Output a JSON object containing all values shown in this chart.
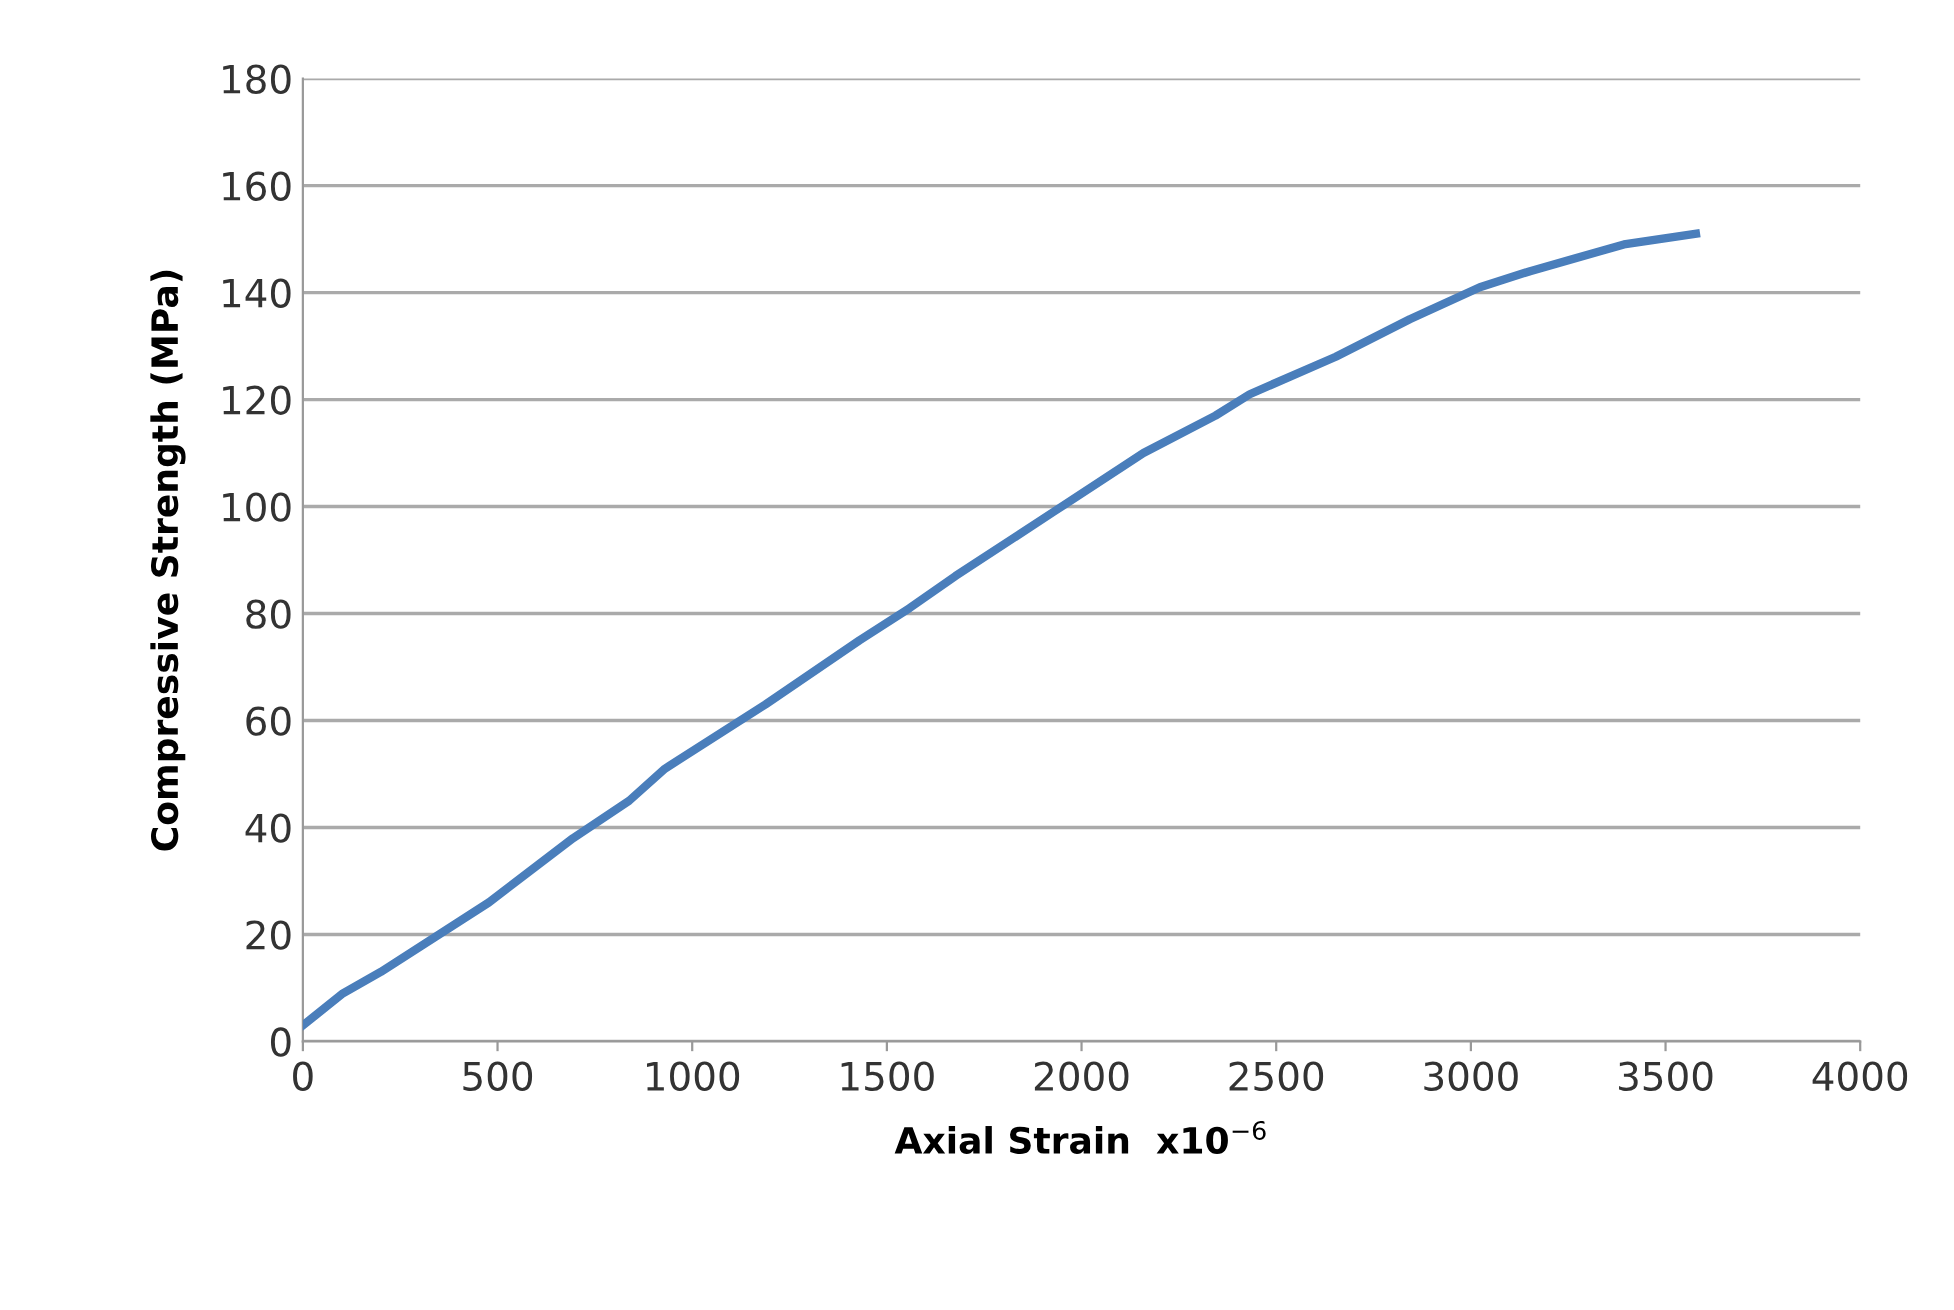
{
  "chart_data": {
    "type": "line",
    "xlabel": "Axial Strain  x10$^{−6}$",
    "ylabel": "Compressive Strength (MPa)",
    "x": [
      0,
      103,
      200,
      478,
      694,
      838,
      930,
      1188,
      1430,
      1558,
      1676,
      1928,
      2159,
      2344,
      2432,
      2653,
      2843,
      3023,
      3152,
      3393,
      3578
    ],
    "series": [
      {
        "color": "#4a7ebb",
        "values": [
          3,
          9,
          13,
          26,
          38,
          45,
          51,
          63,
          75,
          81,
          87,
          99,
          110,
          117,
          121,
          128,
          135,
          141,
          144,
          149,
          151
        ]
      }
    ],
    "xlim": [
      0,
      4000
    ],
    "xticks": [
      0,
      500,
      1000,
      1500,
      2000,
      2500,
      3000,
      3500,
      4000
    ],
    "ylim": [
      0,
      180
    ],
    "yticks": [
      0,
      20,
      40,
      60,
      80,
      100,
      120,
      140,
      160,
      180
    ],
    "grid": "y",
    "legend": false
  }
}
